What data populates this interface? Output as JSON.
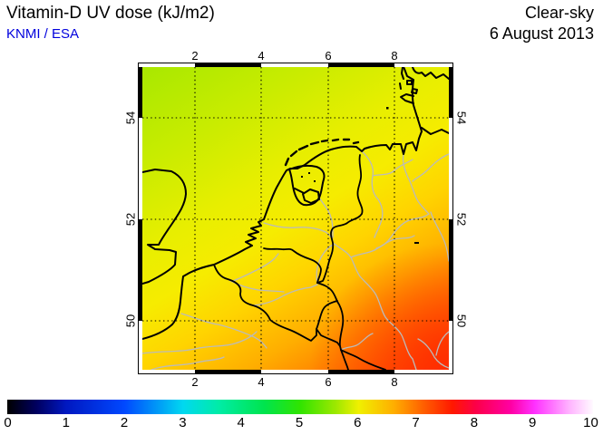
{
  "header": {
    "title": "Vitamin-D UV dose (kJ/m2)",
    "credit": "KNMI / ESA",
    "condition": "Clear-sky",
    "date": "6 August 2013"
  },
  "colors": {
    "credit_blue": "#0000dd",
    "coast_black": "#000000",
    "river_gray": "#bbbbbb"
  },
  "map": {
    "x_tick_labels": [
      "2",
      "4",
      "6",
      "8"
    ],
    "y_tick_labels": [
      "54",
      "52",
      "50"
    ],
    "field_gradient": {
      "angle_deg": 149,
      "stops": [
        [
          "0%",
          "#a8e800"
        ],
        [
          "20%",
          "#c8ec00"
        ],
        [
          "38%",
          "#e8ee00"
        ],
        [
          "50%",
          "#f6ec00"
        ],
        [
          "62%",
          "#ffd400"
        ],
        [
          "75%",
          "#ffae00"
        ],
        [
          "87%",
          "#ff7c00"
        ],
        [
          "100%",
          "#ff4400"
        ]
      ],
      "corner_boost": "#ff2c00"
    }
  },
  "colorbar": {
    "tick_labels": [
      "0",
      "1",
      "2",
      "3",
      "4",
      "5",
      "6",
      "7",
      "8",
      "9",
      "10"
    ],
    "stops": [
      [
        "0%",
        "#000000"
      ],
      [
        "5%",
        "#000060"
      ],
      [
        "10%",
        "#0018c0"
      ],
      [
        "20%",
        "#0048ff"
      ],
      [
        "30%",
        "#00d8f0"
      ],
      [
        "36%",
        "#00eca8"
      ],
      [
        "44%",
        "#00e44c"
      ],
      [
        "50%",
        "#30e400"
      ],
      [
        "56%",
        "#9ce800"
      ],
      [
        "60%",
        "#f0f000"
      ],
      [
        "66%",
        "#ffae00"
      ],
      [
        "71%",
        "#ff6000"
      ],
      [
        "76%",
        "#ff1800"
      ],
      [
        "80%",
        "#fc0048"
      ],
      [
        "86%",
        "#ff00a4"
      ],
      [
        "90%",
        "#ff30ff"
      ],
      [
        "96%",
        "#ffb4ff"
      ],
      [
        "100%",
        "#fffaff"
      ]
    ]
  }
}
